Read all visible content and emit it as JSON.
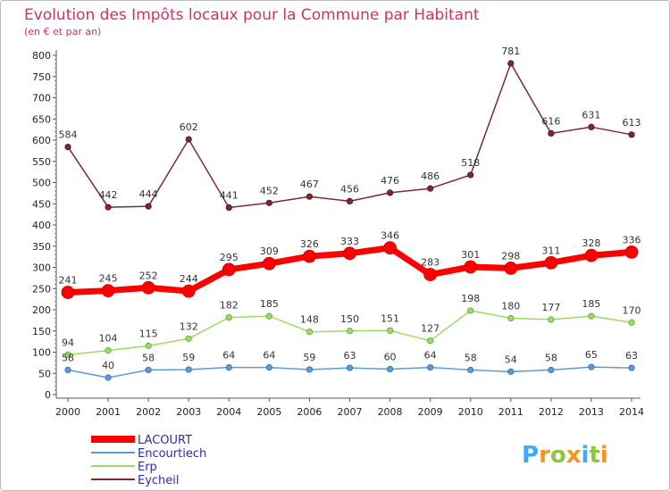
{
  "chart_data": {
    "type": "line",
    "title": "Evolution des Impôts locaux pour la Commune par Habitant",
    "subtitle": "(en € et par an)",
    "x": [
      "2000",
      "2001",
      "2002",
      "2003",
      "2004",
      "2005",
      "2006",
      "2007",
      "2008",
      "2009",
      "2010",
      "2011",
      "2012",
      "2013",
      "2014"
    ],
    "y_ticks": [
      "0",
      "50",
      "100",
      "150",
      "200",
      "250",
      "300",
      "350",
      "400",
      "450",
      "500",
      "550",
      "600",
      "650",
      "700",
      "750",
      "800"
    ],
    "ylim": [
      0,
      800
    ],
    "grid": false,
    "legend_position": "bottom-left",
    "series": [
      {
        "name": "LACOURT",
        "color": "#ff0000",
        "values": [
          241,
          245,
          252,
          244,
          295,
          309,
          326,
          333,
          346,
          283,
          301,
          298,
          311,
          328,
          336
        ],
        "labels": [
          "241",
          "245",
          "252",
          "244",
          "295",
          "309",
          "326",
          "333",
          "346",
          "283",
          "301",
          "298",
          "311",
          "328",
          "336"
        ]
      },
      {
        "name": "Encourtiech",
        "color": "#5b9bd5",
        "values": [
          58,
          40,
          58,
          59,
          64,
          64,
          59,
          63,
          60,
          64,
          58,
          54,
          58,
          65,
          63
        ],
        "labels": [
          "58",
          "40",
          "58",
          "59",
          "64",
          "64",
          "59",
          "63",
          "60",
          "64",
          "58",
          "54",
          "58",
          "65",
          "63"
        ]
      },
      {
        "name": "Erp",
        "color": "#99dd66",
        "values": [
          94,
          104,
          115,
          132,
          182,
          185,
          148,
          150,
          151,
          127,
          198,
          180,
          177,
          185,
          170
        ],
        "labels": [
          "94",
          "104",
          "115",
          "132",
          "182",
          "185",
          "148",
          "150",
          "151",
          "127",
          "198",
          "180",
          "177",
          "185",
          "170"
        ]
      },
      {
        "name": "Eycheil",
        "color": "#7a2a30",
        "values": [
          584,
          442,
          444,
          602,
          441,
          452,
          467,
          456,
          476,
          486,
          518,
          781,
          616,
          631,
          613
        ],
        "labels": [
          "584",
          "442",
          "444",
          "602",
          "441",
          "452",
          "467",
          "456",
          "476",
          "486",
          "518",
          "781",
          "616",
          "631",
          "613"
        ]
      }
    ]
  },
  "brand": {
    "text": "Proxiti",
    "letters": [
      "P",
      "r",
      "o",
      "x",
      "i",
      "t",
      "i"
    ]
  }
}
